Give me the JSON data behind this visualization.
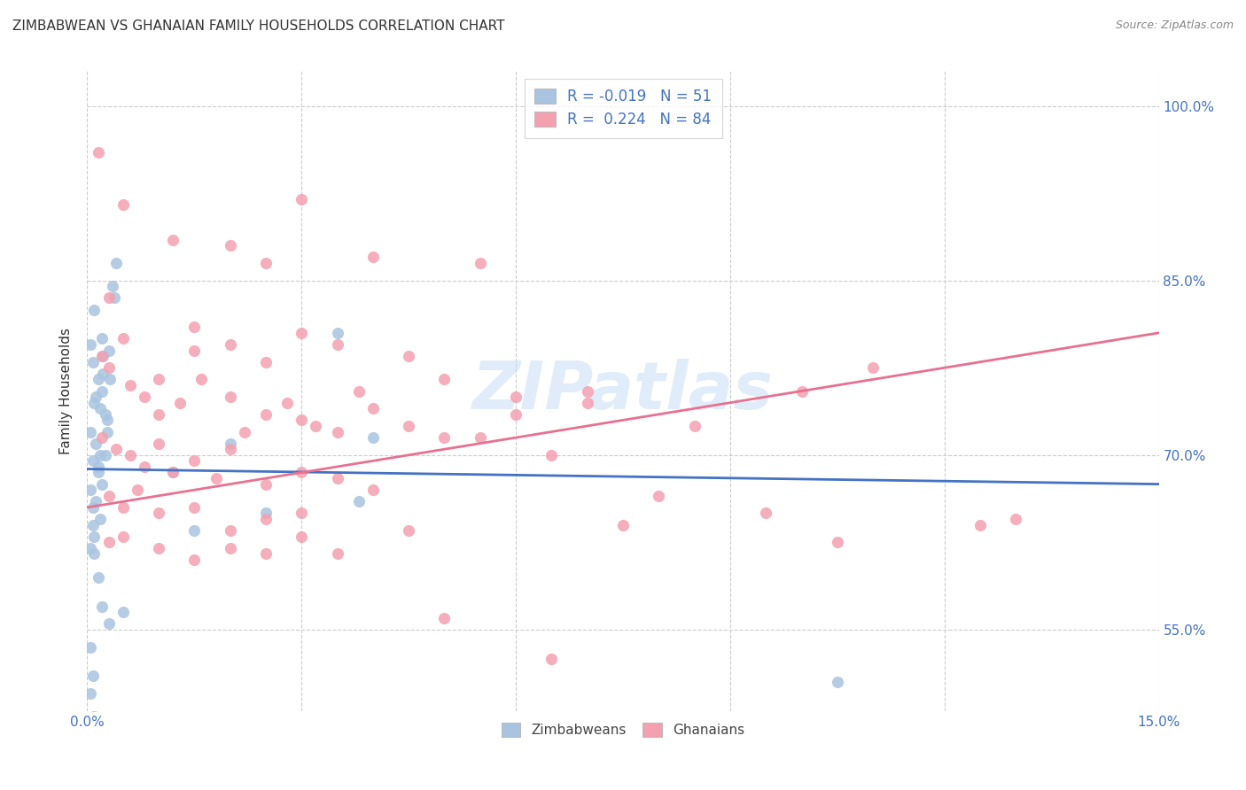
{
  "title": "ZIMBABWEAN VS GHANAIAN FAMILY HOUSEHOLDS CORRELATION CHART",
  "source": "Source: ZipAtlas.com",
  "ylabel": "Family Households",
  "x_range": [
    0.0,
    15.0
  ],
  "y_range": [
    48.0,
    103.0
  ],
  "y_ticks": [
    55.0,
    70.0,
    85.0,
    100.0
  ],
  "x_tick_positions": [
    0,
    3,
    6,
    9,
    12,
    15
  ],
  "legend_r_zim": "-0.019",
  "legend_n_zim": "51",
  "legend_r_gha": "0.224",
  "legend_n_gha": "84",
  "zim_color": "#a8c4e0",
  "gha_color": "#f4a0b0",
  "zim_line_color": "#4472c4",
  "gha_line_color": "#e87090",
  "watermark": "ZIPatlas",
  "zim_line": [
    0.0,
    68.8,
    15.0,
    67.5
  ],
  "gha_line": [
    0.0,
    65.5,
    15.0,
    80.5
  ],
  "zim_scatter": [
    [
      0.05,
      79.5
    ],
    [
      0.08,
      78.0
    ],
    [
      0.1,
      82.5
    ],
    [
      0.12,
      75.0
    ],
    [
      0.15,
      76.5
    ],
    [
      0.18,
      74.0
    ],
    [
      0.2,
      80.0
    ],
    [
      0.22,
      78.5
    ],
    [
      0.25,
      70.0
    ],
    [
      0.28,
      73.0
    ],
    [
      0.3,
      79.0
    ],
    [
      0.32,
      76.5
    ],
    [
      0.35,
      84.5
    ],
    [
      0.38,
      83.5
    ],
    [
      0.4,
      86.5
    ],
    [
      0.05,
      72.0
    ],
    [
      0.08,
      69.5
    ],
    [
      0.1,
      74.5
    ],
    [
      0.12,
      71.0
    ],
    [
      0.15,
      68.5
    ],
    [
      0.18,
      70.0
    ],
    [
      0.2,
      75.5
    ],
    [
      0.22,
      77.0
    ],
    [
      0.25,
      73.5
    ],
    [
      0.28,
      72.0
    ],
    [
      0.05,
      67.0
    ],
    [
      0.08,
      65.5
    ],
    [
      0.1,
      63.0
    ],
    [
      0.12,
      66.0
    ],
    [
      0.15,
      69.0
    ],
    [
      0.18,
      64.5
    ],
    [
      0.2,
      67.5
    ],
    [
      0.05,
      62.0
    ],
    [
      0.08,
      64.0
    ],
    [
      0.1,
      61.5
    ],
    [
      0.15,
      59.5
    ],
    [
      0.2,
      57.0
    ],
    [
      0.05,
      53.5
    ],
    [
      0.08,
      51.0
    ],
    [
      1.2,
      68.5
    ],
    [
      1.5,
      63.5
    ],
    [
      2.0,
      71.0
    ],
    [
      2.5,
      65.0
    ],
    [
      3.5,
      80.5
    ],
    [
      3.8,
      66.0
    ],
    [
      4.0,
      71.5
    ],
    [
      0.3,
      55.5
    ],
    [
      0.5,
      56.5
    ],
    [
      10.5,
      50.5
    ],
    [
      0.05,
      49.5
    ],
    [
      0.1,
      47.5
    ]
  ],
  "gha_scatter": [
    [
      0.15,
      96.0
    ],
    [
      0.5,
      91.5
    ],
    [
      1.2,
      88.5
    ],
    [
      2.0,
      88.0
    ],
    [
      3.0,
      92.0
    ],
    [
      0.3,
      83.5
    ],
    [
      1.5,
      81.0
    ],
    [
      2.5,
      86.5
    ],
    [
      4.0,
      87.0
    ],
    [
      5.5,
      86.5
    ],
    [
      0.2,
      78.5
    ],
    [
      0.5,
      80.0
    ],
    [
      1.0,
      76.5
    ],
    [
      1.5,
      79.0
    ],
    [
      2.0,
      79.5
    ],
    [
      2.5,
      78.0
    ],
    [
      3.0,
      80.5
    ],
    [
      3.5,
      79.5
    ],
    [
      4.5,
      78.5
    ],
    [
      5.0,
      76.5
    ],
    [
      6.0,
      75.0
    ],
    [
      7.0,
      75.5
    ],
    [
      0.3,
      77.5
    ],
    [
      0.6,
      76.0
    ],
    [
      0.8,
      75.0
    ],
    [
      1.0,
      73.5
    ],
    [
      1.3,
      74.5
    ],
    [
      1.6,
      76.5
    ],
    [
      2.0,
      75.0
    ],
    [
      2.2,
      72.0
    ],
    [
      2.5,
      73.5
    ],
    [
      2.8,
      74.5
    ],
    [
      3.0,
      73.0
    ],
    [
      3.2,
      72.5
    ],
    [
      3.5,
      72.0
    ],
    [
      3.8,
      75.5
    ],
    [
      4.0,
      74.0
    ],
    [
      4.5,
      72.5
    ],
    [
      5.0,
      71.5
    ],
    [
      5.5,
      71.5
    ],
    [
      6.0,
      73.5
    ],
    [
      6.5,
      70.0
    ],
    [
      0.2,
      71.5
    ],
    [
      0.4,
      70.5
    ],
    [
      0.6,
      70.0
    ],
    [
      0.8,
      69.0
    ],
    [
      1.0,
      71.0
    ],
    [
      1.2,
      68.5
    ],
    [
      1.5,
      69.5
    ],
    [
      1.8,
      68.0
    ],
    [
      2.0,
      70.5
    ],
    [
      2.5,
      67.5
    ],
    [
      3.0,
      68.5
    ],
    [
      3.5,
      68.0
    ],
    [
      4.0,
      67.0
    ],
    [
      0.3,
      66.5
    ],
    [
      0.5,
      65.5
    ],
    [
      0.7,
      67.0
    ],
    [
      1.0,
      65.0
    ],
    [
      1.5,
      65.5
    ],
    [
      2.0,
      63.5
    ],
    [
      2.5,
      64.5
    ],
    [
      3.0,
      65.0
    ],
    [
      0.3,
      62.5
    ],
    [
      0.5,
      63.0
    ],
    [
      1.0,
      62.0
    ],
    [
      1.5,
      61.0
    ],
    [
      2.0,
      62.0
    ],
    [
      2.5,
      61.5
    ],
    [
      3.0,
      63.0
    ],
    [
      3.5,
      61.5
    ],
    [
      4.5,
      63.5
    ],
    [
      5.0,
      56.0
    ],
    [
      6.5,
      52.5
    ],
    [
      7.5,
      64.0
    ],
    [
      8.0,
      66.5
    ],
    [
      9.5,
      65.0
    ],
    [
      10.5,
      62.5
    ],
    [
      12.5,
      64.0
    ],
    [
      7.0,
      74.5
    ],
    [
      8.5,
      72.5
    ],
    [
      10.0,
      75.5
    ],
    [
      13.0,
      64.5
    ],
    [
      11.0,
      77.5
    ]
  ]
}
